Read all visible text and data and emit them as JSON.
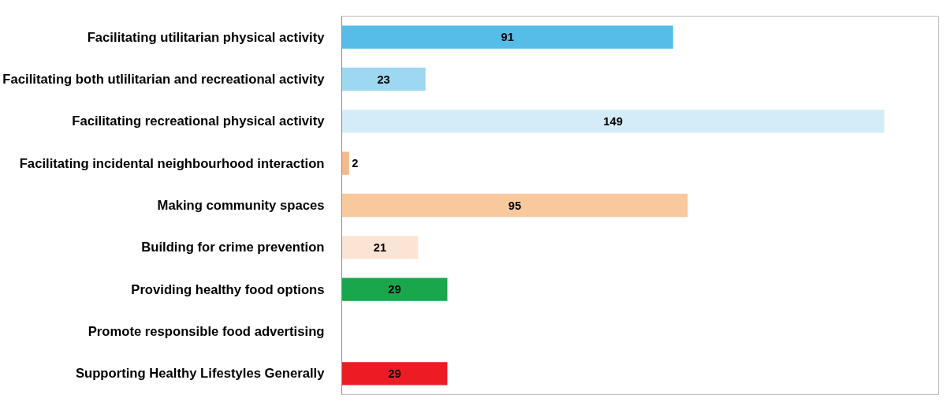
{
  "chart_data": {
    "type": "bar",
    "orientation": "horizontal",
    "data_labels": true,
    "categories": [
      "Facilitating utilitarian physical activity",
      "Facilitating both utlilitarian and recreational activity",
      "Facilitating recreational physical activity",
      "Facilitating incidental neighbourhood interaction",
      "Making community spaces",
      "Building for crime prevention",
      "Providing healthy food options",
      "Promote responsible food advertising",
      "Supporting Healthy Lifestyles Generally"
    ],
    "values": [
      91,
      23,
      149,
      2,
      95,
      21,
      29,
      null,
      29
    ],
    "colors": [
      "#56bde9",
      "#9dd8f0",
      "#d4ecf8",
      "#f5b98a",
      "#f9c89d",
      "#fce4d4",
      "#1aa64a",
      "#ffffff",
      "#ed1c24"
    ]
  }
}
